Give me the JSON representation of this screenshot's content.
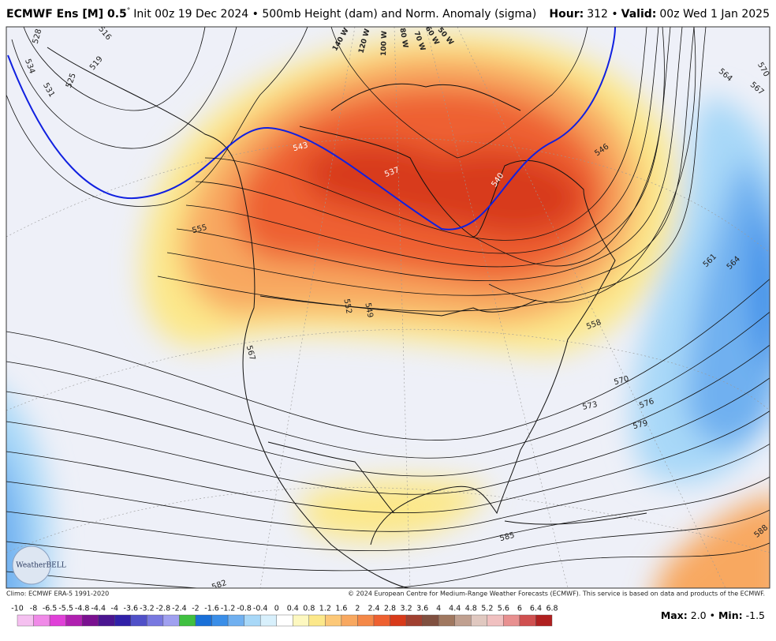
{
  "header": {
    "model": "ECMWF Ens [M] 0.5",
    "degree": "°",
    "description": "Init 00z 19 Dec 2024 • 500mb Height (dam) and Norm. Anomaly (sigma)",
    "hour_label": "Hour:",
    "hour": "312 •",
    "valid_label": "Valid:",
    "valid": "00z Wed 1 Jan 2025"
  },
  "map": {
    "contour_labels": [
      "528",
      "534",
      "531",
      "525",
      "519",
      "516",
      "543",
      "537",
      "540",
      "546",
      "555",
      "552",
      "549",
      "558",
      "561",
      "564",
      "564",
      "567",
      "570",
      "567",
      "570",
      "573",
      "576",
      "579",
      "582",
      "585",
      "588"
    ],
    "longitude_labels": [
      "140 W",
      "120 W",
      "100 W",
      "80 W",
      "70 W",
      "60 W",
      "50 W"
    ],
    "logo": "WeatherBELL"
  },
  "footer": {
    "climo": "Climo: ECMWF ERA-5 1991-2020",
    "copyright": "© 2024 European Centre for Medium-Range Weather Forecasts (ECMWF). This service is based on data and products of the ECMWF."
  },
  "colorbar": {
    "ticks": [
      -10,
      -8,
      -6.5,
      -5.5,
      -4.8,
      -4.4,
      -4,
      -3.6,
      -3.2,
      -2.8,
      -2.4,
      -2,
      -1.6,
      -1.2,
      -0.8,
      -0.4,
      0,
      0.4,
      0.8,
      1.2,
      1.6,
      2,
      2.4,
      2.8,
      3.2,
      3.6,
      4,
      4.4,
      4.8,
      5.2,
      5.6,
      6,
      6.4,
      6.8
    ],
    "colors": [
      "#f5c0f0",
      "#f08ae8",
      "#e040d8",
      "#b020b0",
      "#7a1090",
      "#4a1590",
      "#3020a8",
      "#5050c8",
      "#7878e0",
      "#a0a0f0",
      "#40c040",
      "#1a70d8",
      "#3a8ee8",
      "#70b0f0",
      "#a8d8f8",
      "#d8f0fc",
      "#ffffff",
      "#fdf8c0",
      "#fce88a",
      "#fcc878",
      "#f8a860",
      "#f48848",
      "#ee6030",
      "#d83a1a",
      "#a04030",
      "#805040",
      "#a07860",
      "#c0a090",
      "#e0c8c0",
      "#f0c0c0",
      "#e89090",
      "#d05050",
      "#b02020"
    ]
  },
  "stats": {
    "max_label": "Max:",
    "max": "2.0 •",
    "min_label": "Min:",
    "min": "-1.5"
  }
}
